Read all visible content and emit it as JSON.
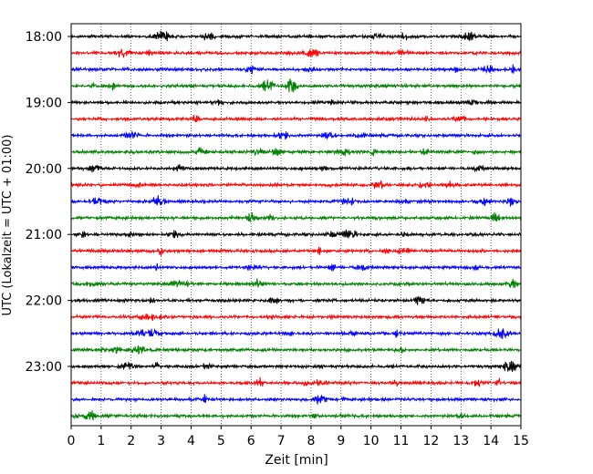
{
  "chart_data": {
    "type": "line",
    "xlabel": "Zeit  [min]",
    "ylabel": "UTC (Lokalzeit = UTC + 01:00)",
    "xlim": [
      0,
      15
    ],
    "x_ticks": [
      "0",
      "1",
      "2",
      "3",
      "4",
      "5",
      "6",
      "7",
      "8",
      "9",
      "10",
      "11",
      "12",
      "13",
      "14",
      "15"
    ],
    "y_ticks": [
      "18:00",
      "19:00",
      "20:00",
      "21:00",
      "22:00",
      "23:00"
    ],
    "grid": "vertical dotted at each minute",
    "trace_colors": [
      "#000000",
      "#ff0000",
      "#0000ff",
      "#008000"
    ],
    "traces": [
      {
        "start": "18:00",
        "color": "#000000"
      },
      {
        "start": "18:15",
        "color": "#ff0000"
      },
      {
        "start": "18:30",
        "color": "#0000ff"
      },
      {
        "start": "18:45",
        "color": "#008000"
      },
      {
        "start": "19:00",
        "color": "#000000"
      },
      {
        "start": "19:15",
        "color": "#ff0000"
      },
      {
        "start": "19:30",
        "color": "#0000ff"
      },
      {
        "start": "19:45",
        "color": "#008000"
      },
      {
        "start": "20:00",
        "color": "#000000"
      },
      {
        "start": "20:15",
        "color": "#ff0000"
      },
      {
        "start": "20:30",
        "color": "#0000ff"
      },
      {
        "start": "20:45",
        "color": "#008000"
      },
      {
        "start": "21:00",
        "color": "#000000"
      },
      {
        "start": "21:15",
        "color": "#ff0000"
      },
      {
        "start": "21:30",
        "color": "#0000ff"
      },
      {
        "start": "21:45",
        "color": "#008000"
      },
      {
        "start": "22:00",
        "color": "#000000"
      },
      {
        "start": "22:15",
        "color": "#ff0000"
      },
      {
        "start": "22:30",
        "color": "#0000ff"
      },
      {
        "start": "22:45",
        "color": "#008000"
      },
      {
        "start": "23:00",
        "color": "#000000"
      },
      {
        "start": "23:15",
        "color": "#ff0000"
      },
      {
        "start": "23:30",
        "color": "#0000ff"
      },
      {
        "start": "23:45",
        "color": "#008000"
      }
    ]
  }
}
